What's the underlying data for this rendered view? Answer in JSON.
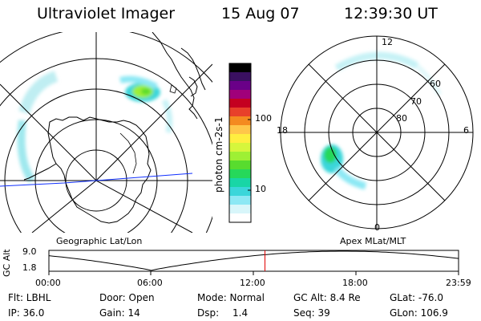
{
  "header": {
    "title": "Ultraviolet Imager",
    "date": "15 Aug 07",
    "time": "12:39:30 UT"
  },
  "colorbar": {
    "ticks": [
      "100",
      "10"
    ],
    "unit_label": "photon cm-2s-1",
    "colors": [
      "#000000",
      "#3a1060",
      "#6a0088",
      "#a0007a",
      "#c40020",
      "#e8402a",
      "#f48a20",
      "#ffc64a",
      "#ffee40",
      "#d6f63c",
      "#9ef034",
      "#58dc2e",
      "#26d85a",
      "#18d6a6",
      "#3ad6da",
      "#8ce8f4",
      "#d8f6fa",
      "#ffffff"
    ]
  },
  "left_panel": {
    "caption": "Geographic Lat/Lon"
  },
  "right_panel": {
    "caption": "Apex MLat/MLT",
    "mlt_labels": {
      "top": "12",
      "left": "18",
      "right": "6",
      "bottom": "0"
    },
    "mlat_labels": [
      "60",
      "70",
      "80"
    ]
  },
  "altitude_strip": {
    "ylabel": "GC Alt",
    "y_ticks": [
      "9.0",
      "1.8"
    ],
    "x_ticks": [
      "00:00",
      "06:00",
      "12:00",
      "18:00",
      "23:59"
    ],
    "marker_time_hours": 12.658
  },
  "footer": {
    "row1": [
      "Flt: LBHL",
      "Door: Open",
      "Mode: Normal",
      "GC Alt: 8.4 Re",
      "GLat: -76.0"
    ],
    "row2": [
      "IP: 36.0",
      "Gain: 14",
      "Dsp:",
      "1.4",
      "Seq: 39",
      "GLon: 106.9"
    ]
  }
}
